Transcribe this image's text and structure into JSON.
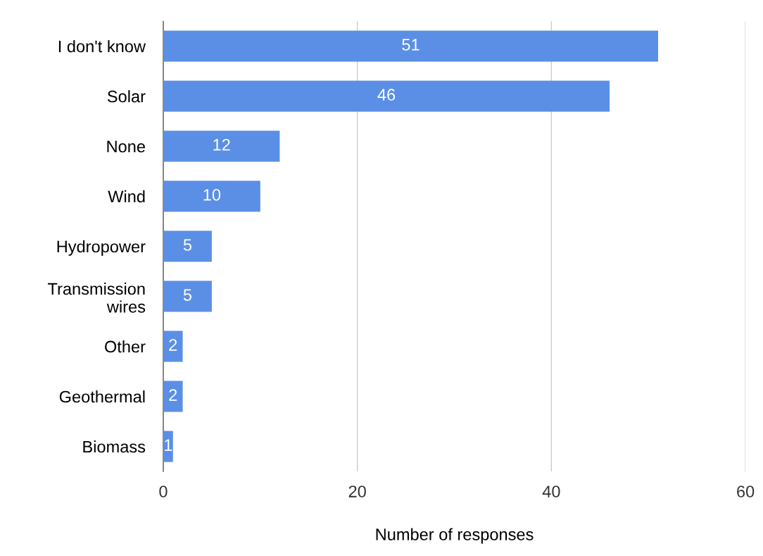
{
  "chart_data": {
    "type": "bar",
    "orientation": "horizontal",
    "xlabel": "Number of responses",
    "categories": [
      "I don't know",
      "Solar",
      "None",
      "Wind",
      "Hydropower",
      "Transmission\nwires",
      "Other",
      "Geothermal",
      "Biomass"
    ],
    "values": [
      51,
      46,
      12,
      10,
      5,
      5,
      2,
      2,
      1
    ],
    "color": "#5b8fe6",
    "xlim": [
      0,
      60
    ],
    "xticks": [
      0,
      20,
      40,
      60
    ],
    "grid": "x",
    "data_labels": true
  }
}
